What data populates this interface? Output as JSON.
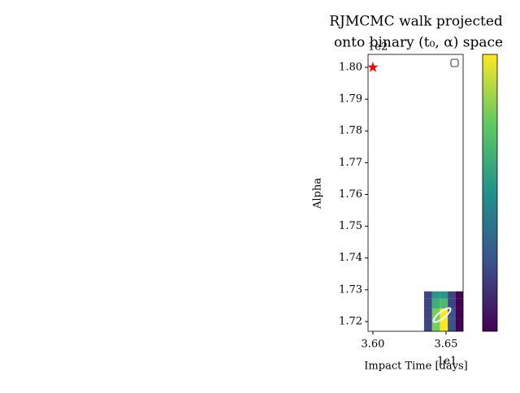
{
  "chart_data": {
    "type": "heatmap",
    "title": [
      "RJMCMC walk projected",
      "onto binary (t₀, α) space"
    ],
    "x_label": "Impact Time [days]",
    "y_label": "Alpha",
    "x_offset": "1e1",
    "y_offset": "1e2",
    "xlim": [
      3.5967,
      3.6617
    ],
    "ylim": [
      1.71693,
      1.80409
    ],
    "xticks": [
      {
        "value": 3.6,
        "label": "3.60"
      },
      {
        "value": 3.65,
        "label": "3.65"
      }
    ],
    "yticks": [
      {
        "value": 1.72,
        "label": "1.72"
      },
      {
        "value": 1.73,
        "label": "1.73"
      },
      {
        "value": 1.74,
        "label": "1.74"
      },
      {
        "value": 1.75,
        "label": "1.75"
      },
      {
        "value": 1.76,
        "label": "1.76"
      },
      {
        "value": 1.77,
        "label": "1.77"
      },
      {
        "value": 1.78,
        "label": "1.78"
      },
      {
        "value": 1.79,
        "label": "1.79"
      },
      {
        "value": 1.8,
        "label": "1.80"
      }
    ],
    "x_edges": [
      3.635,
      3.6405,
      3.646,
      3.6512,
      3.6565,
      3.6617
    ],
    "y_edges": [
      1.71693,
      1.721,
      1.7241,
      1.7272,
      1.7295
    ],
    "z": [
      [
        0.25,
        0.8,
        1.0,
        0.3,
        0.05
      ],
      [
        0.25,
        0.8,
        1.0,
        0.3,
        0.05
      ],
      [
        0.25,
        0.65,
        0.7,
        0.25,
        0.05
      ],
      [
        0.25,
        0.55,
        0.55,
        0.25,
        0.05
      ]
    ],
    "colormap": "viridis",
    "markers": [
      {
        "x": 3.6,
        "y": 1.8,
        "color": "red"
      }
    ]
  }
}
